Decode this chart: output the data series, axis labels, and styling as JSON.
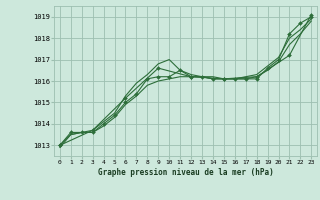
{
  "background_color": "#cde8dc",
  "grid_color": "#9dbfb0",
  "line_color": "#2d6e3a",
  "title": "Graphe pression niveau de la mer (hPa)",
  "xlim": [
    -0.5,
    23.5
  ],
  "ylim": [
    1012.5,
    1019.5
  ],
  "yticks": [
    1013,
    1014,
    1015,
    1016,
    1017,
    1018,
    1019
  ],
  "xticks": [
    0,
    1,
    2,
    3,
    4,
    5,
    6,
    7,
    8,
    9,
    10,
    11,
    12,
    13,
    14,
    15,
    16,
    17,
    18,
    19,
    20,
    21,
    22,
    23
  ],
  "series": [
    {
      "x": [
        0,
        1,
        2,
        3,
        4,
        5,
        6,
        7,
        8,
        9,
        10,
        11,
        12,
        13,
        14,
        15,
        16,
        17,
        18,
        19,
        20,
        21,
        22,
        23
      ],
      "y": [
        1013.0,
        1013.6,
        1013.6,
        1013.6,
        1014.0,
        1014.4,
        1015.0,
        1015.4,
        1016.1,
        1016.2,
        1016.2,
        1016.5,
        1016.2,
        1016.2,
        1016.1,
        1016.1,
        1016.1,
        1016.1,
        1016.1,
        1016.6,
        1017.0,
        1018.2,
        1018.7,
        1019.0
      ],
      "marker": true
    },
    {
      "x": [
        0,
        1,
        2,
        3,
        4,
        5,
        6,
        7,
        8,
        9,
        10,
        11,
        12,
        13,
        14,
        15,
        16,
        17,
        18,
        19,
        20,
        21,
        22,
        23
      ],
      "y": [
        1013.0,
        1013.5,
        1013.6,
        1013.6,
        1013.9,
        1014.3,
        1014.9,
        1015.3,
        1015.8,
        1016.0,
        1016.1,
        1016.2,
        1016.2,
        1016.2,
        1016.1,
        1016.1,
        1016.1,
        1016.1,
        1016.2,
        1016.5,
        1016.9,
        1017.7,
        1018.2,
        1018.8
      ],
      "marker": false
    },
    {
      "x": [
        0,
        1,
        2,
        3,
        4,
        5,
        6,
        7,
        8,
        9,
        10,
        11,
        12,
        13,
        14,
        15,
        16,
        17,
        18,
        19,
        20,
        21,
        22,
        23
      ],
      "y": [
        1012.9,
        1013.5,
        1013.6,
        1013.7,
        1014.1,
        1014.5,
        1015.3,
        1015.9,
        1016.3,
        1016.8,
        1017.0,
        1016.5,
        1016.3,
        1016.2,
        1016.2,
        1016.1,
        1016.1,
        1016.2,
        1016.3,
        1016.7,
        1017.1,
        1018.0,
        1018.4,
        1018.9
      ],
      "marker": false
    },
    {
      "x": [
        0,
        3,
        6,
        9,
        12,
        15,
        18,
        21,
        23
      ],
      "y": [
        1013.0,
        1013.7,
        1015.2,
        1016.6,
        1016.2,
        1016.1,
        1016.2,
        1017.2,
        1019.1
      ],
      "marker": true
    }
  ]
}
